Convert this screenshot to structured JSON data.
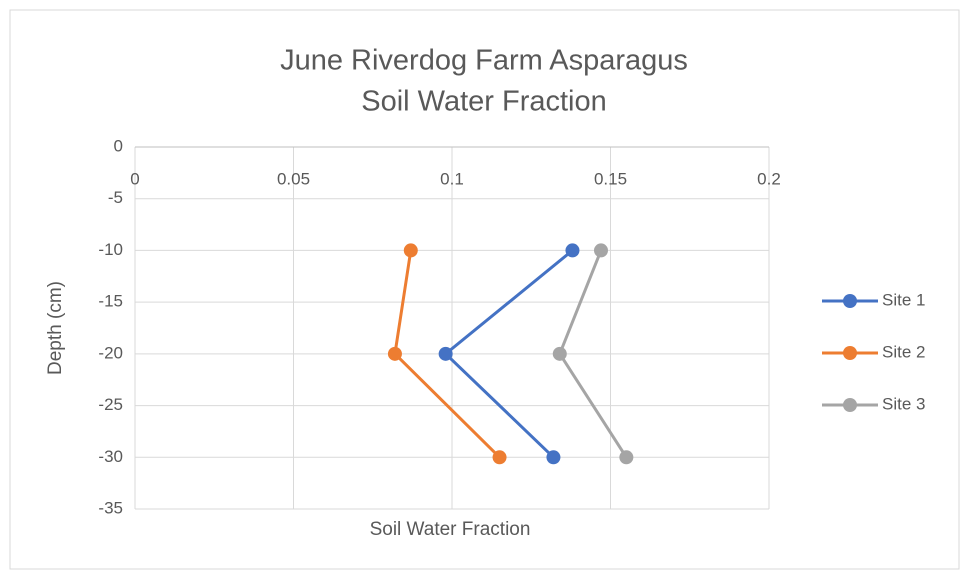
{
  "chart_data": {
    "type": "scatter-line",
    "title": [
      "June Riverdog Farm Asparagus",
      "Soil Water Fraction"
    ],
    "x_label": "Soil Water Fraction",
    "y_label": "Depth (cm)",
    "xlim": [
      0,
      0.2
    ],
    "xticks": [
      0,
      0.05,
      0.1,
      0.15,
      0.2
    ],
    "ylim": [
      -35,
      0
    ],
    "yticks": [
      0,
      -5,
      -10,
      -15,
      -20,
      -25,
      -30,
      -35
    ],
    "grid": true,
    "legend": "right",
    "series": [
      {
        "name": "Site 1",
        "color": "#4472c4",
        "x": [
          0.138,
          0.098,
          0.132
        ],
        "values": [
          -10,
          -20,
          -30
        ]
      },
      {
        "name": "Site 2",
        "color": "#ed7d31",
        "x": [
          0.087,
          0.082,
          0.115
        ],
        "values": [
          -10,
          -20,
          -30
        ]
      },
      {
        "name": "Site 3",
        "color": "#a5a5a5",
        "x": [
          0.147,
          0.134,
          0.155
        ],
        "values": [
          -10,
          -20,
          -30
        ]
      }
    ]
  }
}
